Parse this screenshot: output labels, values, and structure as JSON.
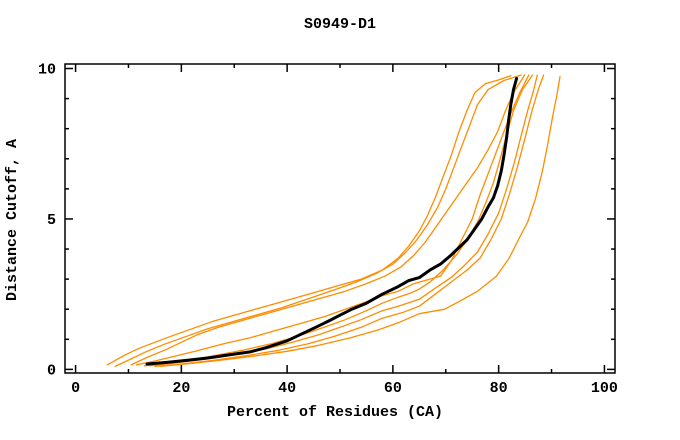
{
  "window": {
    "background": "#ffffff"
  },
  "chart_data": {
    "type": "line",
    "title": "S0949-D1",
    "xlabel": "Percent of Residues (CA)",
    "ylabel": "Distance Cutoff, A",
    "xlim": [
      -2,
      102
    ],
    "ylim": [
      -0.12,
      10.15
    ],
    "x_major_ticks": [
      0,
      20,
      40,
      60,
      80,
      100
    ],
    "x_minor_ticks": [
      10,
      30,
      50,
      70,
      90
    ],
    "y_major_ticks": [
      0,
      5,
      10
    ],
    "y_minor_ticks": [
      1,
      2,
      3,
      4,
      6,
      7,
      8,
      9
    ],
    "grid": false,
    "legend": "none",
    "frame_color": "#000000",
    "colors": {
      "model_lines": "#ff8c00",
      "highlight_line": "#000000"
    },
    "series": [
      {
        "id": "orange-1",
        "color": "#ff8c00",
        "width": 1.3,
        "points": [
          [
            6,
            0.15
          ],
          [
            9,
            0.45
          ],
          [
            12,
            0.7
          ],
          [
            15,
            0.9
          ],
          [
            18,
            1.1
          ],
          [
            22,
            1.35
          ],
          [
            26,
            1.6
          ],
          [
            30,
            1.8
          ],
          [
            35,
            2.05
          ],
          [
            40,
            2.3
          ],
          [
            45,
            2.55
          ],
          [
            50,
            2.8
          ],
          [
            54,
            3.0
          ],
          [
            58,
            3.3
          ],
          [
            61,
            3.7
          ],
          [
            63,
            4.1
          ],
          [
            65,
            4.6
          ],
          [
            66.5,
            5.1
          ],
          [
            68,
            5.7
          ],
          [
            69.5,
            6.4
          ],
          [
            71,
            7.1
          ],
          [
            72.5,
            7.9
          ],
          [
            74,
            8.6
          ],
          [
            75.5,
            9.2
          ],
          [
            77.5,
            9.5
          ],
          [
            80,
            9.62
          ],
          [
            82.3,
            9.76
          ]
        ]
      },
      {
        "id": "orange-2",
        "color": "#ff8c00",
        "width": 1.3,
        "points": [
          [
            7.5,
            0.1
          ],
          [
            10.5,
            0.35
          ],
          [
            13.5,
            0.6
          ],
          [
            17,
            0.85
          ],
          [
            21,
            1.1
          ],
          [
            25,
            1.35
          ],
          [
            29,
            1.55
          ],
          [
            34,
            1.8
          ],
          [
            39,
            2.05
          ],
          [
            44,
            2.35
          ],
          [
            49,
            2.65
          ],
          [
            53,
            2.9
          ],
          [
            57,
            3.2
          ],
          [
            60,
            3.5
          ],
          [
            62.5,
            3.9
          ],
          [
            64.5,
            4.3
          ],
          [
            66.5,
            4.8
          ],
          [
            68.5,
            5.4
          ],
          [
            70,
            6.0
          ],
          [
            71.5,
            6.7
          ],
          [
            73,
            7.4
          ],
          [
            74.5,
            8.1
          ],
          [
            76,
            8.8
          ],
          [
            78,
            9.3
          ],
          [
            81,
            9.6
          ],
          [
            84.2,
            9.78
          ]
        ]
      },
      {
        "id": "orange-3",
        "color": "#ff8c00",
        "width": 1.3,
        "points": [
          [
            10.5,
            0.15
          ],
          [
            13.5,
            0.4
          ],
          [
            17,
            0.65
          ],
          [
            20,
            0.9
          ],
          [
            23,
            1.15
          ],
          [
            27,
            1.4
          ],
          [
            31,
            1.6
          ],
          [
            36,
            1.85
          ],
          [
            41,
            2.1
          ],
          [
            46,
            2.35
          ],
          [
            51,
            2.6
          ],
          [
            55,
            2.85
          ],
          [
            58.5,
            3.1
          ],
          [
            61.5,
            3.4
          ],
          [
            64,
            3.8
          ],
          [
            66,
            4.2
          ],
          [
            68,
            4.7
          ],
          [
            70,
            5.2
          ],
          [
            72,
            5.7
          ],
          [
            74,
            6.2
          ],
          [
            76,
            6.7
          ],
          [
            78,
            7.3
          ],
          [
            79.8,
            7.9
          ],
          [
            81.3,
            8.6
          ],
          [
            82.8,
            9.2
          ],
          [
            84.9,
            9.78
          ]
        ]
      },
      {
        "id": "orange-4",
        "color": "#ff8c00",
        "width": 1.3,
        "points": [
          [
            11.5,
            0.15
          ],
          [
            15,
            0.28
          ],
          [
            19,
            0.45
          ],
          [
            23,
            0.62
          ],
          [
            28,
            0.85
          ],
          [
            33,
            1.05
          ],
          [
            38,
            1.3
          ],
          [
            43,
            1.55
          ],
          [
            47,
            1.75
          ],
          [
            51,
            2.0
          ],
          [
            55,
            2.25
          ],
          [
            58,
            2.45
          ],
          [
            61,
            2.6
          ],
          [
            64,
            2.85
          ],
          [
            67,
            3.0
          ],
          [
            69,
            3.1
          ],
          [
            71,
            3.6
          ],
          [
            73,
            4.3
          ],
          [
            75,
            5.0
          ],
          [
            76.5,
            5.8
          ],
          [
            78,
            6.5
          ],
          [
            79.5,
            7.2
          ],
          [
            81,
            7.9
          ],
          [
            82.5,
            8.6
          ],
          [
            84,
            9.2
          ],
          [
            85.7,
            9.78
          ]
        ]
      },
      {
        "id": "orange-5",
        "color": "#ff8c00",
        "width": 1.3,
        "points": [
          [
            13,
            0.12
          ],
          [
            17,
            0.2
          ],
          [
            22,
            0.32
          ],
          [
            27,
            0.48
          ],
          [
            32,
            0.65
          ],
          [
            37,
            0.85
          ],
          [
            42,
            1.1
          ],
          [
            47,
            1.4
          ],
          [
            51,
            1.65
          ],
          [
            55,
            1.95
          ],
          [
            58,
            2.2
          ],
          [
            61,
            2.4
          ],
          [
            63.5,
            2.55
          ],
          [
            65,
            2.67
          ],
          [
            67,
            2.9
          ],
          [
            69.5,
            3.3
          ],
          [
            72,
            3.8
          ],
          [
            74,
            4.3
          ],
          [
            76,
            4.9
          ],
          [
            77.5,
            5.5
          ],
          [
            79,
            6.2
          ],
          [
            80.3,
            7.0
          ],
          [
            81.5,
            7.8
          ],
          [
            82.8,
            8.6
          ],
          [
            84.5,
            9.3
          ],
          [
            86.4,
            9.78
          ]
        ]
      },
      {
        "id": "orange-6",
        "color": "#ff8c00",
        "width": 1.3,
        "points": [
          [
            14,
            0.12
          ],
          [
            19,
            0.22
          ],
          [
            24,
            0.33
          ],
          [
            30,
            0.48
          ],
          [
            36,
            0.68
          ],
          [
            41,
            0.9
          ],
          [
            46,
            1.15
          ],
          [
            50,
            1.4
          ],
          [
            54,
            1.65
          ],
          [
            58,
            1.95
          ],
          [
            61,
            2.1
          ],
          [
            65,
            2.33
          ],
          [
            68,
            2.7
          ],
          [
            71,
            3.05
          ],
          [
            73.5,
            3.45
          ],
          [
            76,
            3.9
          ],
          [
            78,
            4.5
          ],
          [
            80,
            5.2
          ],
          [
            81.5,
            6.0
          ],
          [
            83,
            6.9
          ],
          [
            84.3,
            7.8
          ],
          [
            85.5,
            8.6
          ],
          [
            86.5,
            9.2
          ],
          [
            87.3,
            9.78
          ]
        ]
      },
      {
        "id": "orange-7",
        "color": "#ff8c00",
        "width": 1.3,
        "points": [
          [
            15,
            0.1
          ],
          [
            20,
            0.18
          ],
          [
            26,
            0.3
          ],
          [
            32,
            0.45
          ],
          [
            38,
            0.62
          ],
          [
            44,
            0.85
          ],
          [
            49,
            1.1
          ],
          [
            54,
            1.4
          ],
          [
            58,
            1.7
          ],
          [
            62,
            1.9
          ],
          [
            65,
            2.1
          ],
          [
            68,
            2.5
          ],
          [
            71,
            2.9
          ],
          [
            74,
            3.3
          ],
          [
            76.5,
            3.7
          ],
          [
            78.5,
            4.3
          ],
          [
            80.5,
            5.0
          ],
          [
            82,
            5.8
          ],
          [
            83.5,
            6.7
          ],
          [
            85,
            7.7
          ],
          [
            86.3,
            8.6
          ],
          [
            87.5,
            9.3
          ],
          [
            88.5,
            9.78
          ]
        ]
      },
      {
        "id": "orange-8",
        "color": "#ff8c00",
        "width": 1.3,
        "points": [
          [
            16,
            0.1
          ],
          [
            22,
            0.2
          ],
          [
            28,
            0.32
          ],
          [
            34,
            0.45
          ],
          [
            40,
            0.6
          ],
          [
            46,
            0.8
          ],
          [
            52,
            1.05
          ],
          [
            57,
            1.3
          ],
          [
            61,
            1.55
          ],
          [
            65,
            1.85
          ],
          [
            69.8,
            2.0
          ],
          [
            73,
            2.3
          ],
          [
            76,
            2.6
          ],
          [
            79.6,
            3.1
          ],
          [
            82,
            3.7
          ],
          [
            84,
            4.4
          ],
          [
            85.5,
            4.9
          ],
          [
            87,
            5.7
          ],
          [
            88.3,
            6.6
          ],
          [
            89.3,
            7.5
          ],
          [
            90.2,
            8.4
          ],
          [
            91,
            9.1
          ],
          [
            91.6,
            9.73
          ]
        ]
      },
      {
        "id": "black-highlight",
        "color": "#000000",
        "width": 3,
        "points": [
          [
            13.5,
            0.18
          ],
          [
            17,
            0.23
          ],
          [
            21,
            0.3
          ],
          [
            25,
            0.38
          ],
          [
            29,
            0.48
          ],
          [
            33,
            0.58
          ],
          [
            36,
            0.72
          ],
          [
            40,
            0.95
          ],
          [
            43,
            1.2
          ],
          [
            46,
            1.45
          ],
          [
            48,
            1.62
          ],
          [
            50,
            1.8
          ],
          [
            52,
            1.98
          ],
          [
            55,
            2.2
          ],
          [
            58,
            2.5
          ],
          [
            61,
            2.75
          ],
          [
            63,
            2.95
          ],
          [
            65,
            3.05
          ],
          [
            67,
            3.3
          ],
          [
            69,
            3.5
          ],
          [
            71,
            3.8
          ],
          [
            72.5,
            4.05
          ],
          [
            74,
            4.3
          ],
          [
            75.2,
            4.6
          ],
          [
            76.8,
            5.0
          ],
          [
            78,
            5.4
          ],
          [
            79,
            5.7
          ],
          [
            79.8,
            6.1
          ],
          [
            80.5,
            6.6
          ],
          [
            81,
            7.1
          ],
          [
            81.5,
            7.7
          ],
          [
            81.9,
            8.3
          ],
          [
            82.3,
            8.8
          ],
          [
            82.8,
            9.3
          ],
          [
            83.4,
            9.67
          ]
        ]
      }
    ]
  }
}
